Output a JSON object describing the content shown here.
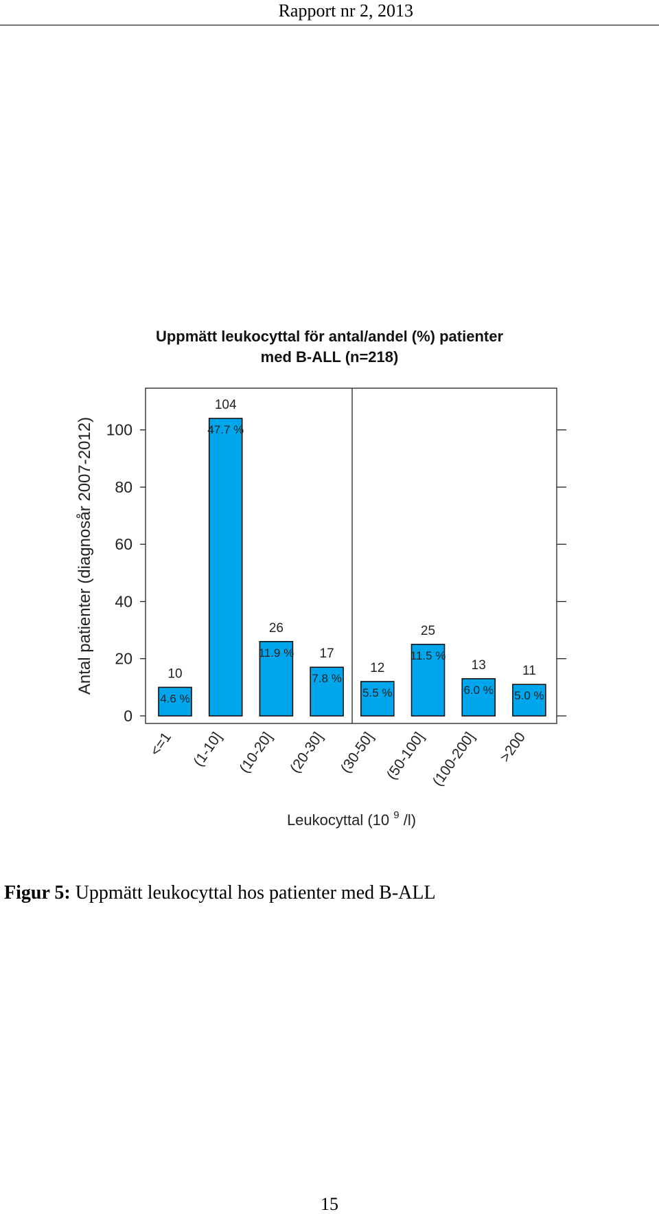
{
  "page": {
    "header": "Rapport nr 2, 2013",
    "page_number": "15"
  },
  "caption": {
    "label": "Figur 5:",
    "text": "Uppmätt leukocyttal hos patienter med B-ALL"
  },
  "chart_data": {
    "type": "bar",
    "title_line1": "Uppmätt leukocyttal för antal/andel (%) patienter",
    "title_line2": "med B-ALL (n=218)",
    "xlabel_prefix": "Leukocyttal (10",
    "xlabel_superscript": "9",
    "xlabel_suffix": "/l)",
    "ylabel": "Antal patienter (diagnosår 2007-2012)",
    "categories": [
      "<=1",
      "(1-10]",
      "(10-20]",
      "(20-30]",
      "(30-50]",
      "(50-100]",
      "(100-200]",
      ">200"
    ],
    "values": [
      10,
      104,
      26,
      17,
      12,
      25,
      13,
      11
    ],
    "count_labels": [
      "10",
      "104",
      "26",
      "17",
      "12",
      "25",
      "13",
      "11"
    ],
    "percent_labels": [
      "4.6 %",
      "47.7 %",
      "11.9 %",
      "7.8 %",
      "5.5 %",
      "11.5 %",
      "6.0 %",
      "5.0 %"
    ],
    "ylim": [
      0,
      115
    ],
    "yticks": [
      0,
      20,
      40,
      60,
      80,
      100
    ],
    "ytick_labels": [
      "0",
      "20",
      "40",
      "60",
      "80",
      "100"
    ],
    "bar_color": "#00a6ec",
    "divider_after_category": "(20-30]",
    "grid": false,
    "legend": "none"
  }
}
